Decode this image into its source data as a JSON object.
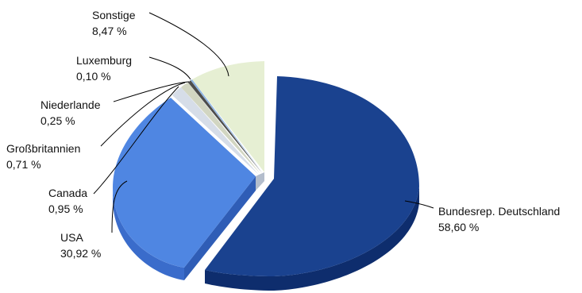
{
  "chart_data": {
    "type": "pie",
    "style": "3d-exploded",
    "title": "",
    "slices": [
      {
        "label": "Bundesrep. Deutschland",
        "value_text": "58,60 %",
        "value": 58.6,
        "color": "#1A428F",
        "side": "#0E2D6D"
      },
      {
        "label": "USA",
        "value_text": "30,92 %",
        "value": 30.92,
        "color": "#4F86E2",
        "side": "#3A6CCB"
      },
      {
        "label": "Canada",
        "value_text": "0,95 %",
        "value": 0.95,
        "color": "#D6DDE8",
        "side": "#B3BDCC"
      },
      {
        "label": "Großbritannien",
        "value_text": "0,71 %",
        "value": 0.71,
        "color": "#D2D6C2",
        "side": "#AEB49C"
      },
      {
        "label": "Niederlande",
        "value_text": "0,25 %",
        "value": 0.25,
        "color": "#4D4D4D",
        "side": "#333333"
      },
      {
        "label": "Luxemburg",
        "value_text": "0,10 %",
        "value": 0.1,
        "color": "#8DB4E2",
        "side": "#6E97C8"
      },
      {
        "label": "Sonstige",
        "value_text": "8,47 %",
        "value": 8.47,
        "color": "#E6EFD3",
        "side": "#C9D6B0"
      }
    ]
  }
}
